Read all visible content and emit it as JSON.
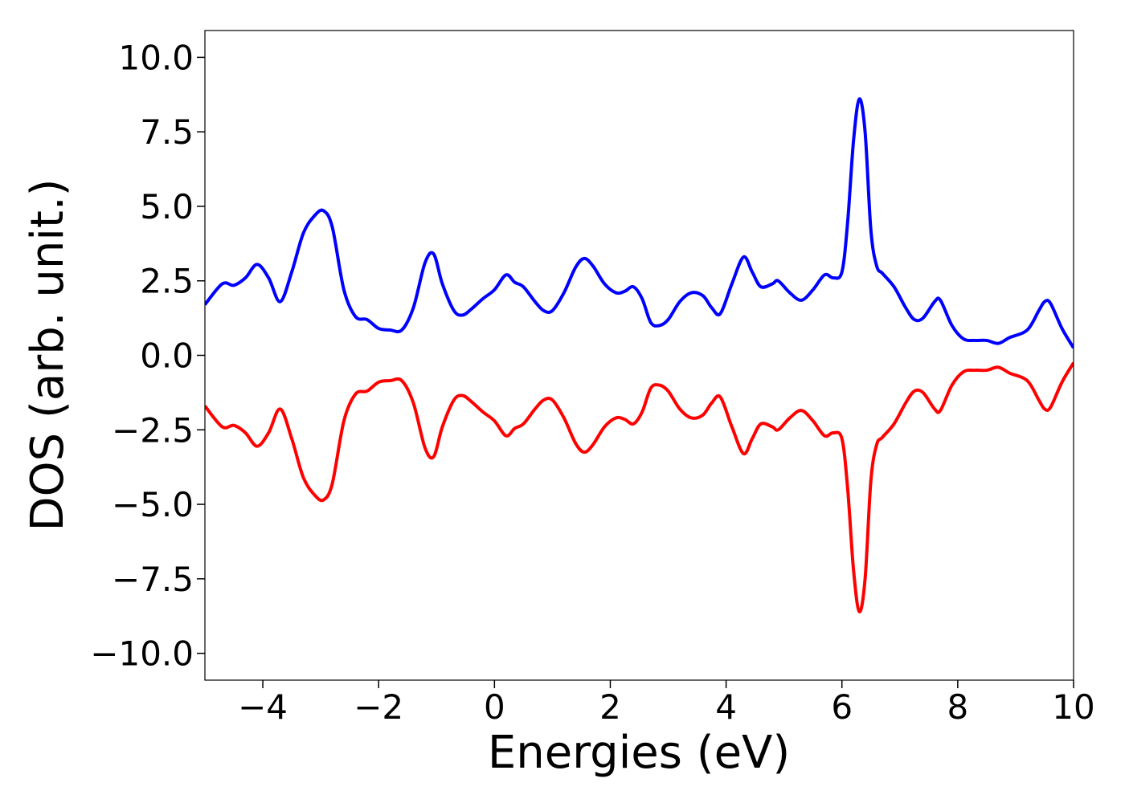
{
  "chart_data": {
    "type": "line",
    "title": "",
    "xlabel": "Energies (eV)",
    "ylabel": "DOS (arb. unit.)",
    "xlim": [
      -5,
      10
    ],
    "ylim": [
      -10.9,
      10.9
    ],
    "xticks": [
      -4,
      -2,
      0,
      2,
      4,
      6,
      8,
      10
    ],
    "xtick_labels": [
      "−4",
      "−2",
      "0",
      "2",
      "4",
      "6",
      "8",
      "10"
    ],
    "yticks": [
      10,
      7.5,
      5,
      2.5,
      0,
      -2.5,
      -5,
      -7.5,
      -10
    ],
    "ytick_labels": [
      "10.0",
      "7.5",
      "5.0",
      "2.5",
      "0.0",
      "−2.5",
      "−5.0",
      "−7.5",
      "−10.0"
    ],
    "grid": false,
    "legend": "none",
    "series": [
      {
        "color": "#0000ff",
        "x": [
          -5.0,
          -4.7,
          -4.5,
          -4.3,
          -4.1,
          -3.9,
          -3.7,
          -3.5,
          -3.3,
          -3.1,
          -2.95,
          -2.8,
          -2.6,
          -2.4,
          -2.2,
          -2.0,
          -1.8,
          -1.6,
          -1.4,
          -1.2,
          -1.05,
          -0.9,
          -0.7,
          -0.55,
          -0.4,
          -0.2,
          0.0,
          0.2,
          0.35,
          0.5,
          0.7,
          0.85,
          1.0,
          1.2,
          1.4,
          1.55,
          1.7,
          1.9,
          2.1,
          2.25,
          2.4,
          2.55,
          2.7,
          2.85,
          3.0,
          3.2,
          3.4,
          3.6,
          3.75,
          3.9,
          4.1,
          4.3,
          4.45,
          4.6,
          4.8,
          4.9,
          5.1,
          5.3,
          5.5,
          5.7,
          5.85,
          6.0,
          6.1,
          6.2,
          6.3,
          6.4,
          6.5,
          6.6,
          6.7,
          6.9,
          7.1,
          7.25,
          7.4,
          7.6,
          7.7,
          7.9,
          8.1,
          8.3,
          8.5,
          8.7,
          8.9,
          9.2,
          9.4,
          9.5,
          9.6,
          9.8,
          10.0
        ],
        "y": [
          1.7,
          2.4,
          2.35,
          2.6,
          3.05,
          2.6,
          1.8,
          2.8,
          4.1,
          4.7,
          4.85,
          4.3,
          2.2,
          1.3,
          1.2,
          0.9,
          0.85,
          0.85,
          1.6,
          3.1,
          3.4,
          2.4,
          1.5,
          1.35,
          1.55,
          1.9,
          2.2,
          2.7,
          2.45,
          2.3,
          1.8,
          1.5,
          1.5,
          2.1,
          2.95,
          3.25,
          3.0,
          2.4,
          2.1,
          2.15,
          2.3,
          1.9,
          1.1,
          1.0,
          1.2,
          1.8,
          2.1,
          2.0,
          1.6,
          1.4,
          2.4,
          3.3,
          2.8,
          2.3,
          2.4,
          2.5,
          2.1,
          1.85,
          2.2,
          2.7,
          2.6,
          2.8,
          4.5,
          7.2,
          8.6,
          7.5,
          4.2,
          3.0,
          2.75,
          2.3,
          1.6,
          1.2,
          1.25,
          1.8,
          1.85,
          1.0,
          0.55,
          0.5,
          0.5,
          0.4,
          0.6,
          0.85,
          1.5,
          1.8,
          1.75,
          0.9,
          0.25
        ]
      },
      {
        "color": "#ff0000",
        "x": [
          -5.0,
          -4.7,
          -4.5,
          -4.3,
          -4.1,
          -3.9,
          -3.7,
          -3.5,
          -3.3,
          -3.1,
          -2.95,
          -2.8,
          -2.6,
          -2.4,
          -2.2,
          -2.0,
          -1.8,
          -1.6,
          -1.4,
          -1.2,
          -1.05,
          -0.9,
          -0.7,
          -0.55,
          -0.4,
          -0.2,
          0.0,
          0.2,
          0.35,
          0.5,
          0.7,
          0.85,
          1.0,
          1.2,
          1.4,
          1.55,
          1.7,
          1.9,
          2.1,
          2.25,
          2.4,
          2.55,
          2.7,
          2.85,
          3.0,
          3.2,
          3.4,
          3.6,
          3.75,
          3.9,
          4.1,
          4.3,
          4.45,
          4.6,
          4.8,
          4.9,
          5.1,
          5.3,
          5.5,
          5.7,
          5.85,
          6.0,
          6.1,
          6.2,
          6.3,
          6.4,
          6.5,
          6.6,
          6.7,
          6.9,
          7.1,
          7.25,
          7.4,
          7.6,
          7.7,
          7.9,
          8.1,
          8.3,
          8.5,
          8.7,
          8.9,
          9.2,
          9.4,
          9.5,
          9.6,
          9.8,
          10.0
        ],
        "y": [
          -1.7,
          -2.4,
          -2.35,
          -2.6,
          -3.05,
          -2.6,
          -1.8,
          -2.8,
          -4.1,
          -4.7,
          -4.85,
          -4.3,
          -2.2,
          -1.3,
          -1.2,
          -0.9,
          -0.85,
          -0.85,
          -1.6,
          -3.1,
          -3.4,
          -2.4,
          -1.5,
          -1.35,
          -1.55,
          -1.9,
          -2.2,
          -2.7,
          -2.45,
          -2.3,
          -1.8,
          -1.5,
          -1.5,
          -2.1,
          -2.95,
          -3.25,
          -3.0,
          -2.4,
          -2.1,
          -2.15,
          -2.3,
          -1.9,
          -1.1,
          -1.0,
          -1.2,
          -1.8,
          -2.1,
          -2.0,
          -1.6,
          -1.4,
          -2.4,
          -3.3,
          -2.8,
          -2.3,
          -2.4,
          -2.5,
          -2.1,
          -1.85,
          -2.2,
          -2.7,
          -2.6,
          -2.8,
          -4.5,
          -7.2,
          -8.6,
          -7.5,
          -4.2,
          -3.0,
          -2.75,
          -2.3,
          -1.6,
          -1.2,
          -1.25,
          -1.8,
          -1.85,
          -1.0,
          -0.55,
          -0.5,
          -0.5,
          -0.4,
          -0.6,
          -0.85,
          -1.5,
          -1.8,
          -1.75,
          -0.9,
          -0.25
        ]
      }
    ]
  }
}
